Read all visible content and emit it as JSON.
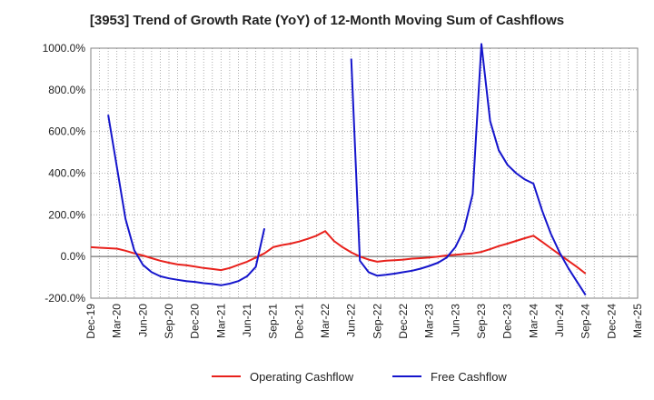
{
  "chart_data": {
    "type": "line",
    "title": "[3953]  Trend of Growth Rate (YoY) of 12-Month Moving Sum of Cashflows",
    "xlabel": "",
    "ylabel": "",
    "x_tick_labels": [
      "Dec-19",
      "Mar-20",
      "Jun-20",
      "Sep-20",
      "Dec-20",
      "Mar-21",
      "Jun-21",
      "Sep-21",
      "Dec-21",
      "Mar-22",
      "Jun-22",
      "Sep-22",
      "Dec-22",
      "Mar-23",
      "Jun-23",
      "Sep-23",
      "Dec-23",
      "Mar-24",
      "Jun-24",
      "Sep-24",
      "Dec-24",
      "Mar-25"
    ],
    "y_tick_labels": [
      "1000.0%",
      "800.0%",
      "600.0%",
      "400.0%",
      "200.0%",
      "0.0%",
      "-200.0%"
    ],
    "ylim": [
      -200,
      1000
    ],
    "y_ticks": [
      1000,
      800,
      600,
      400,
      200,
      0,
      -200
    ],
    "grid": true,
    "legend_position": "bottom-center",
    "series": [
      {
        "name": "Operating Cashflow",
        "color": "#e8211c",
        "points": [
          [
            "Dec-19",
            45
          ],
          [
            "Jan-20",
            42
          ],
          [
            "Feb-20",
            40
          ],
          [
            "Mar-20",
            38
          ],
          [
            "Apr-20",
            28
          ],
          [
            "May-20",
            15
          ],
          [
            "Jun-20",
            5
          ],
          [
            "Jul-20",
            -8
          ],
          [
            "Aug-20",
            -20
          ],
          [
            "Sep-20",
            -30
          ],
          [
            "Oct-20",
            -38
          ],
          [
            "Nov-20",
            -42
          ],
          [
            "Dec-20",
            -48
          ],
          [
            "Jan-21",
            -55
          ],
          [
            "Feb-21",
            -60
          ],
          [
            "Mar-21",
            -65
          ],
          [
            "Apr-21",
            -55
          ],
          [
            "May-21",
            -40
          ],
          [
            "Jun-21",
            -25
          ],
          [
            "Jul-21",
            -5
          ],
          [
            "Aug-21",
            15
          ],
          [
            "Sep-21",
            45
          ],
          [
            "Oct-21",
            55
          ],
          [
            "Nov-21",
            62
          ],
          [
            "Dec-21",
            72
          ],
          [
            "Jan-22",
            85
          ],
          [
            "Feb-22",
            100
          ],
          [
            "Mar-22",
            122
          ],
          [
            "Apr-22",
            75
          ],
          [
            "May-22",
            45
          ],
          [
            "Jun-22",
            20
          ],
          [
            "Jul-22",
            0
          ],
          [
            "Aug-22",
            -15
          ],
          [
            "Sep-22",
            -25
          ],
          [
            "Oct-22",
            -20
          ],
          [
            "Nov-22",
            -18
          ],
          [
            "Dec-22",
            -15
          ],
          [
            "Jan-23",
            -10
          ],
          [
            "Feb-23",
            -8
          ],
          [
            "Mar-23",
            -5
          ],
          [
            "Apr-23",
            0
          ],
          [
            "May-23",
            5
          ],
          [
            "Jun-23",
            8
          ],
          [
            "Jul-23",
            12
          ],
          [
            "Aug-23",
            15
          ],
          [
            "Sep-23",
            22
          ],
          [
            "Oct-23",
            35
          ],
          [
            "Nov-23",
            50
          ],
          [
            "Dec-23",
            62
          ],
          [
            "Jan-24",
            75
          ],
          [
            "Feb-24",
            88
          ],
          [
            "Mar-24",
            100
          ],
          [
            "Apr-24",
            70
          ],
          [
            "May-24",
            40
          ],
          [
            "Jun-24",
            10
          ],
          [
            "Jul-24",
            -20
          ],
          [
            "Aug-24",
            -50
          ],
          [
            "Sep-24",
            -82
          ]
        ]
      },
      {
        "name": "Free Cashflow",
        "color": "#1515cc",
        "segments": [
          [
            [
              "Feb-20",
              680
            ],
            [
              "Apr-20",
              180
            ],
            [
              "May-20",
              30
            ],
            [
              "Jun-20",
              -40
            ],
            [
              "Jul-20",
              -75
            ],
            [
              "Aug-20",
              -95
            ],
            [
              "Sep-20",
              -105
            ],
            [
              "Oct-20",
              -112
            ],
            [
              "Nov-20",
              -118
            ],
            [
              "Dec-20",
              -122
            ],
            [
              "Jan-21",
              -128
            ],
            [
              "Feb-21",
              -132
            ],
            [
              "Mar-21",
              -138
            ],
            [
              "Apr-21",
              -130
            ],
            [
              "May-21",
              -118
            ],
            [
              "Jun-21",
              -95
            ],
            [
              "Jul-21",
              -50
            ],
            [
              "Aug-21",
              135
            ]
          ],
          [
            [
              "Jun-22",
              950
            ],
            [
              "Jul-22",
              -20
            ],
            [
              "Aug-22",
              -75
            ],
            [
              "Sep-22",
              -92
            ],
            [
              "Oct-22",
              -88
            ],
            [
              "Nov-22",
              -82
            ],
            [
              "Dec-22",
              -75
            ],
            [
              "Jan-23",
              -68
            ],
            [
              "Feb-23",
              -58
            ],
            [
              "Mar-23",
              -45
            ],
            [
              "Apr-23",
              -30
            ],
            [
              "May-23",
              -5
            ],
            [
              "Jun-23",
              45
            ],
            [
              "Jul-23",
              130
            ],
            [
              "Aug-23",
              300
            ],
            [
              "Sep-23",
              1020
            ],
            [
              "Oct-23",
              650
            ],
            [
              "Nov-23",
              510
            ],
            [
              "Dec-23",
              440
            ],
            [
              "Jan-24",
              400
            ],
            [
              "Feb-24",
              370
            ],
            [
              "Mar-24",
              350
            ],
            [
              "Apr-24",
              220
            ],
            [
              "May-24",
              110
            ],
            [
              "Jun-24",
              20
            ],
            [
              "Jul-24",
              -55
            ],
            [
              "Aug-24",
              -120
            ],
            [
              "Sep-24",
              -185
            ]
          ]
        ]
      }
    ]
  }
}
